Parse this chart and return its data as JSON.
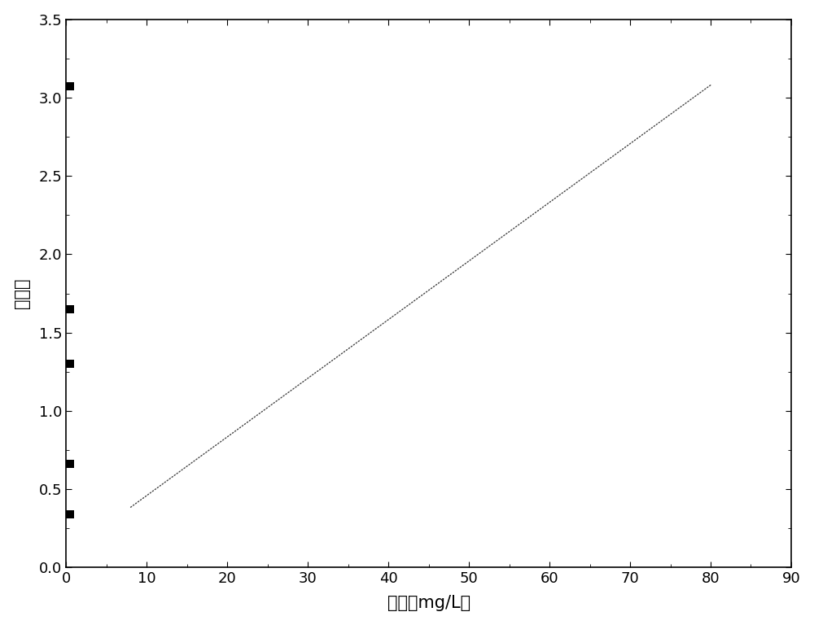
{
  "scatter_x": [
    0.5,
    0.5,
    0.5,
    0.5,
    0.5
  ],
  "scatter_y": [
    0.34,
    0.66,
    1.3,
    1.65,
    3.07
  ],
  "line_x": [
    8,
    80
  ],
  "line_y": [
    0.385,
    3.08
  ],
  "xlabel": "浓度（mg/L）",
  "ylabel": "吸光度",
  "xlim": [
    0,
    90
  ],
  "ylim": [
    0.0,
    3.5
  ],
  "xticks": [
    0,
    10,
    20,
    30,
    40,
    50,
    60,
    70,
    80,
    90
  ],
  "yticks": [
    0.0,
    0.5,
    1.0,
    1.5,
    2.0,
    2.5,
    3.0,
    3.5
  ],
  "background_color": "#ffffff",
  "marker_color": "#000000",
  "line_color": "#444444",
  "marker_size": 7,
  "line_width": 1.0,
  "xlabel_fontsize": 15,
  "ylabel_fontsize": 15,
  "tick_fontsize": 13
}
